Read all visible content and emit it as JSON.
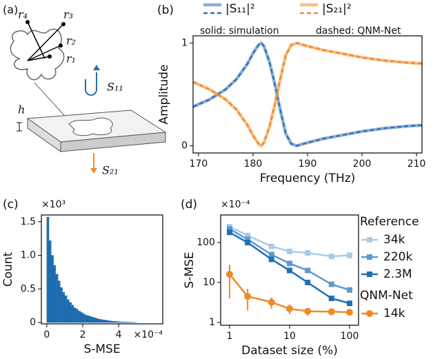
{
  "diagram": {
    "label": "(a)",
    "r4": "r₄",
    "r3": "r₃",
    "r2": "r₂",
    "r1": "r₁",
    "s11": "S₁₁",
    "h": "h",
    "s21": "S₂₁"
  },
  "chart_data": [
    {
      "type": "line",
      "panel": "(b)",
      "xlabel": "Frequency (THz)",
      "ylabel": "Amplitude",
      "legend": "top",
      "annotations": [
        "solid: simulation",
        "dashed: QNM-Net"
      ],
      "x": [
        169,
        172,
        175,
        177,
        179,
        180,
        181,
        181.5,
        182,
        183,
        184,
        185,
        186,
        187,
        188,
        190,
        193,
        196,
        200,
        204,
        206,
        208,
        211
      ],
      "series": [
        {
          "name": "|S₁₁|²",
          "color": "#2f6fb3",
          "values": [
            0.38,
            0.45,
            0.55,
            0.65,
            0.8,
            0.9,
            0.98,
            1.0,
            0.97,
            0.82,
            0.6,
            0.35,
            0.12,
            0.02,
            0.0,
            0.03,
            0.07,
            0.1,
            0.14,
            0.17,
            0.18,
            0.19,
            0.2
          ],
          "qnm_values": [
            0.38,
            0.45,
            0.55,
            0.65,
            0.8,
            0.9,
            0.98,
            1.0,
            0.97,
            0.82,
            0.6,
            0.35,
            0.12,
            0.02,
            0.0,
            0.03,
            0.07,
            0.1,
            0.14,
            0.17,
            0.18,
            0.19,
            0.2
          ]
        },
        {
          "name": "|S₂₁|²",
          "color": "#f08a24",
          "values": [
            0.62,
            0.55,
            0.45,
            0.35,
            0.2,
            0.1,
            0.02,
            0.0,
            0.03,
            0.18,
            0.4,
            0.65,
            0.88,
            0.98,
            1.0,
            0.97,
            0.93,
            0.9,
            0.86,
            0.83,
            0.82,
            0.81,
            0.8
          ],
          "qnm_values": [
            0.62,
            0.55,
            0.45,
            0.35,
            0.2,
            0.1,
            0.02,
            0.0,
            0.03,
            0.18,
            0.4,
            0.65,
            0.88,
            0.98,
            1.0,
            0.97,
            0.93,
            0.9,
            0.86,
            0.83,
            0.82,
            0.81,
            0.8
          ]
        }
      ],
      "xlim": [
        169,
        211
      ],
      "xticks": [
        170,
        180,
        190,
        200,
        210
      ],
      "ylim": [
        -0.07,
        1.07
      ],
      "yticks": [
        0,
        1
      ]
    },
    {
      "type": "histogram",
      "panel": "(c)",
      "xlabel": "S-MSE",
      "ylabel": "Count",
      "x_multiplier": "×10⁻⁴",
      "y_multiplier": "×10³",
      "color": "#1f6fb4",
      "bins": [
        0,
        0.125,
        0.25,
        0.375,
        0.5,
        0.625,
        0.75,
        0.875,
        1,
        1.125,
        1.25,
        1.375,
        1.5,
        1.625,
        1.75,
        1.875,
        2,
        2.125,
        2.25,
        2.375,
        2.5,
        2.625,
        2.75,
        2.875,
        3,
        3.125,
        3.25,
        3.375,
        3.5,
        3.625,
        3.75,
        3.875,
        4,
        4.125,
        4.25,
        4.375,
        4.5,
        4.625,
        4.75,
        4.875,
        5
      ],
      "values": [
        1.57,
        1.22,
        1.0,
        0.85,
        0.72,
        0.62,
        0.52,
        0.45,
        0.4,
        0.34,
        0.3,
        0.26,
        0.22,
        0.2,
        0.17,
        0.15,
        0.13,
        0.11,
        0.1,
        0.09,
        0.08,
        0.07,
        0.06,
        0.05,
        0.045,
        0.04,
        0.035,
        0.03,
        0.025,
        0.02,
        0.018,
        0.015,
        0.012,
        0.01,
        0.009,
        0.008,
        0.006,
        0.005,
        0.004,
        0.003
      ],
      "xlim": [
        -0.3,
        6.45
      ],
      "xticks": [
        0,
        2,
        4
      ],
      "ylim": [
        -0.02,
        1.6
      ],
      "yticks": [
        0,
        0.5,
        {
          "value": 1,
          "label": "1.0"
        },
        1.5
      ]
    },
    {
      "type": "line",
      "panel": "(d)",
      "xlabel": "Dataset size (%)",
      "ylabel": "S-MSE",
      "y_multiplier": "×10⁻⁴",
      "legend": "right",
      "xscale": "log",
      "yscale": "log",
      "markers": true,
      "legend_titles": [
        "Reference",
        "QNM-Net"
      ],
      "x": [
        1,
        2,
        5,
        10,
        20,
        50,
        100
      ],
      "series": [
        {
          "name": "34k",
          "group": 0,
          "color": "#a9cbe8",
          "values": [
            250,
            150,
            80,
            60,
            55,
            45,
            48
          ],
          "errors": [
            40,
            20,
            10,
            8,
            8,
            6,
            8
          ]
        },
        {
          "name": "220k",
          "group": 0,
          "color": "#5b9bd0",
          "values": [
            220,
            120,
            50,
            30,
            20,
            9,
            6.5
          ],
          "errors": [
            30,
            15,
            6,
            4,
            2,
            1,
            0.6
          ]
        },
        {
          "name": "2.3M",
          "group": 0,
          "color": "#1f6fb4",
          "values": [
            180,
            100,
            38,
            20,
            10,
            4,
            3
          ],
          "errors": [
            25,
            12,
            4,
            2,
            1,
            0.4,
            0.3
          ]
        },
        {
          "name": "14k",
          "group": 1,
          "color": "#f08a24",
          "values": [
            16,
            4.5,
            3.2,
            2.2,
            1.9,
            1.85,
            1.8
          ],
          "errors": [
            12,
            2.5,
            1,
            0.6,
            0.4,
            0.2,
            0.15
          ]
        }
      ],
      "xlim": [
        0.71,
        141
      ],
      "xticks": [
        1,
        10,
        100
      ],
      "ylim": [
        0.85,
        490
      ],
      "yticks": [
        1,
        10,
        100
      ]
    }
  ]
}
